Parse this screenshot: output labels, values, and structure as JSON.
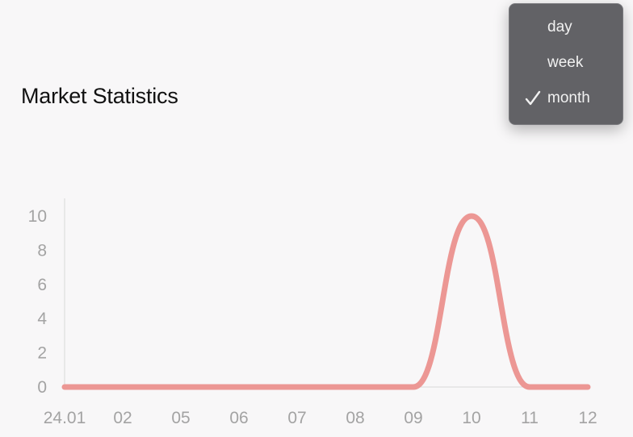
{
  "header": {
    "title": "Market Statistics"
  },
  "period_menu": {
    "items": [
      {
        "label": "day",
        "checked": false
      },
      {
        "label": "week",
        "checked": false
      },
      {
        "label": "month",
        "checked": true
      }
    ],
    "icon": "checkmark-icon"
  },
  "colors": {
    "line": "#ec9794",
    "axis": "#d8d8d8",
    "tick_text": "#a3a3a3",
    "menu_bg": "#5c5c60"
  },
  "chart_data": {
    "type": "line",
    "title": "Market Statistics",
    "xlabel": "",
    "ylabel": "",
    "categories": [
      "24.01",
      "02",
      "05",
      "06",
      "07",
      "08",
      "09",
      "10",
      "11",
      "12"
    ],
    "series": [
      {
        "values": [
          0,
          0,
          0,
          0,
          0,
          0,
          0,
          10,
          0,
          0
        ]
      }
    ],
    "y_ticks": [
      0,
      2,
      4,
      6,
      8,
      10
    ],
    "ylim": [
      0,
      10
    ],
    "grid": false,
    "legend": "none"
  }
}
